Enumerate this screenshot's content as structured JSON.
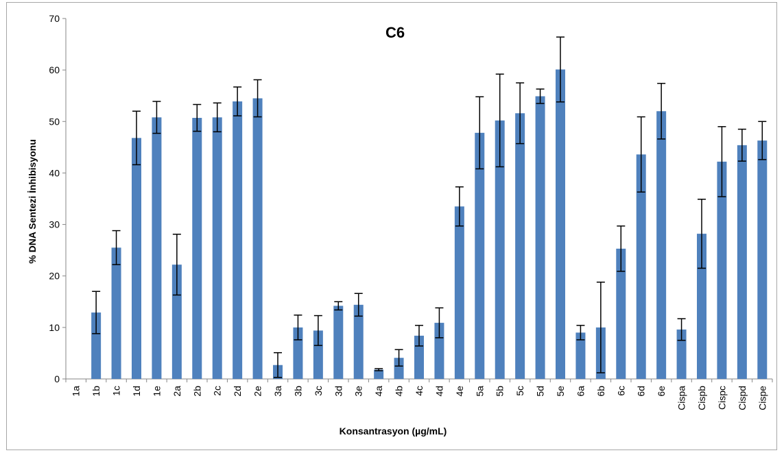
{
  "chart_data": {
    "type": "bar",
    "title": "C6",
    "xlabel": "Konsantrasyon  (µg/mL)",
    "ylabel": "% DNA Sentezi İnhibisyonu",
    "ylim": [
      0,
      70
    ],
    "yticks": [
      0,
      10,
      20,
      30,
      40,
      50,
      60,
      70
    ],
    "grid": false,
    "legend": "none",
    "bar_color": "#4f81bd",
    "categories": [
      "1a",
      "1b",
      "1c",
      "1d",
      "1e",
      "2a",
      "2b",
      "2c",
      "2d",
      "2e",
      "3a",
      "3b",
      "3c",
      "3d",
      "3e",
      "4a",
      "4b",
      "4c",
      "4d",
      "4e",
      "5a",
      "5b",
      "5c",
      "5d",
      "5e",
      "6a",
      "6b",
      "6c",
      "6d",
      "6e",
      "Cispa",
      "Cispb",
      "Cispc",
      "Cispd",
      "Cispe"
    ],
    "series": [
      {
        "values": [
          0,
          12.9,
          25.5,
          46.8,
          50.8,
          22.2,
          50.7,
          50.8,
          53.9,
          54.5,
          2.7,
          10.0,
          9.4,
          14.2,
          14.4,
          1.8,
          4.1,
          8.4,
          10.9,
          33.5,
          47.8,
          50.2,
          51.6,
          54.9,
          60.1,
          9.0,
          10.0,
          25.3,
          43.6,
          52.0,
          9.6,
          28.2,
          42.2,
          45.4,
          46.3
        ],
        "errors": [
          0,
          4.1,
          3.3,
          5.2,
          3.1,
          5.9,
          2.6,
          2.8,
          2.8,
          3.6,
          2.4,
          2.4,
          2.9,
          0.8,
          2.2,
          0.2,
          1.6,
          2.0,
          2.9,
          3.8,
          7.0,
          9.0,
          5.9,
          1.4,
          6.3,
          1.4,
          8.8,
          4.4,
          7.3,
          5.4,
          2.1,
          6.7,
          6.8,
          3.1,
          3.7
        ]
      }
    ]
  }
}
